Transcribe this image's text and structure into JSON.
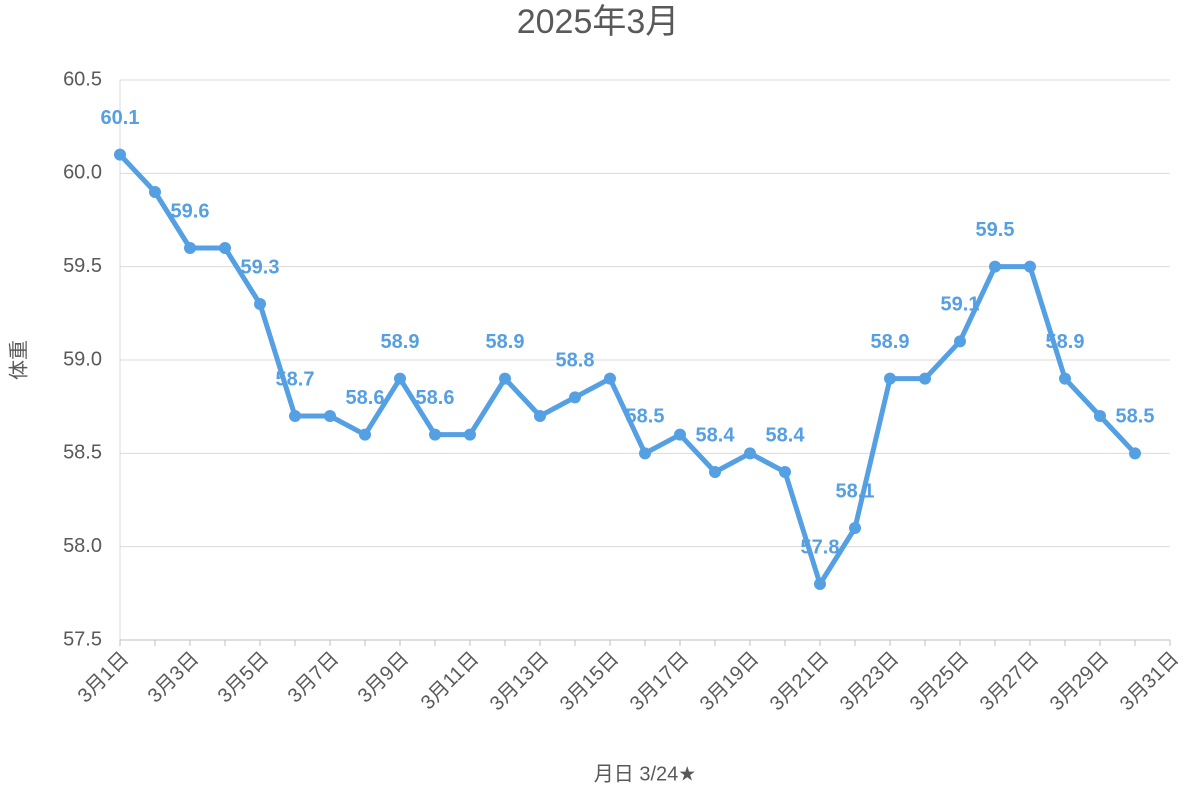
{
  "chart_data": {
    "type": "line",
    "title": "2025年3月",
    "x_label": "月日 3/24★",
    "y_label": "体重",
    "categories": [
      "3月1日",
      null,
      "3月3日",
      null,
      "3月5日",
      null,
      "3月7日",
      null,
      "3月9日",
      null,
      "3月11日",
      null,
      "3月13日",
      null,
      "3月15日",
      null,
      "3月17日",
      null,
      "3月19日",
      null,
      "3月21日",
      null,
      "3月23日",
      null,
      "3月25日",
      null,
      "3月27日",
      null,
      "3月29日",
      null,
      "3月31日"
    ],
    "values": [
      60.1,
      59.9,
      59.6,
      59.6,
      59.3,
      58.7,
      58.7,
      58.6,
      58.9,
      58.6,
      58.6,
      58.9,
      58.7,
      58.8,
      58.9,
      58.5,
      58.6,
      58.4,
      58.5,
      58.4,
      57.8,
      58.1,
      58.9,
      58.9,
      59.1,
      59.5,
      59.5,
      58.9,
      58.7,
      58.5,
      null
    ],
    "value_labels": [
      "60.1",
      null,
      "59.6",
      null,
      "59.3",
      "58.7",
      null,
      "58.6",
      "58.9",
      "58.6",
      null,
      "58.9",
      null,
      "58.8",
      null,
      "58.5",
      null,
      "58.4",
      null,
      "58.4",
      "57.8",
      "58.1",
      "58.9",
      null,
      "59.1",
      "59.5",
      null,
      "58.9",
      null,
      "58.5",
      null
    ],
    "color": "#559fe3",
    "ylim": [
      57.5,
      60.5
    ],
    "yticks": [
      57.5,
      {
        "value": 58,
        "label": "58.0"
      },
      58.5,
      {
        "value": 59,
        "label": "59.0"
      },
      59.5,
      {
        "value": 60,
        "label": "60.0"
      },
      60.5
    ],
    "grid": true
  }
}
